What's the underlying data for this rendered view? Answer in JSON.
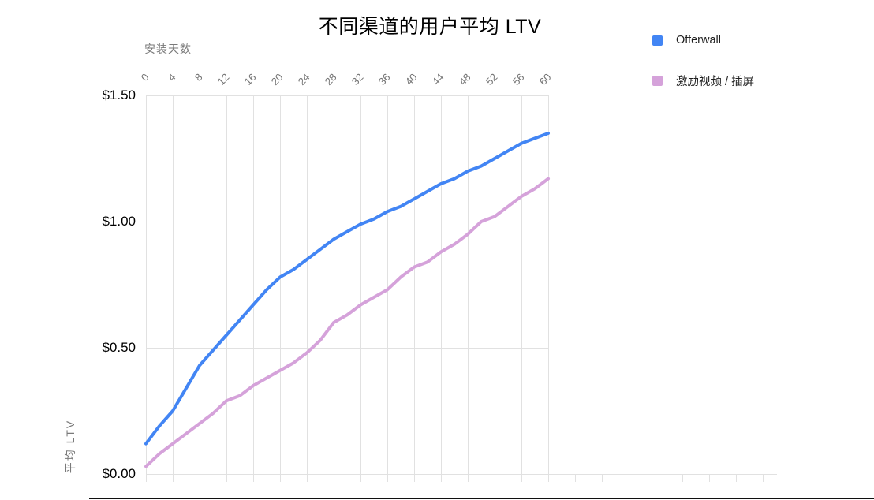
{
  "chart_data": {
    "type": "line",
    "title": "不同渠道的用户平均 LTV",
    "xlabel": "安装天数",
    "ylabel": "平均 LTV",
    "legend_position": "right-outside",
    "grid": true,
    "xlim": [
      0,
      60
    ],
    "ylim": [
      0,
      1.5
    ],
    "x_tick_labels": [
      0,
      4,
      8,
      12,
      16,
      20,
      24,
      28,
      32,
      36,
      40,
      44,
      48,
      52,
      56,
      60
    ],
    "y_ticks": [
      0,
      0.5,
      1.0,
      1.5
    ],
    "y_tick_labels": [
      "$0.00",
      "$0.50",
      "$1.00",
      "$1.50"
    ],
    "x": [
      0,
      2,
      4,
      6,
      8,
      10,
      12,
      14,
      16,
      18,
      20,
      22,
      24,
      26,
      28,
      30,
      32,
      34,
      36,
      38,
      40,
      42,
      44,
      46,
      48,
      50,
      52,
      54,
      56,
      58,
      60
    ],
    "series": [
      {
        "name": "Offerwall",
        "color": "#4285f4",
        "values": [
          0.12,
          0.19,
          0.25,
          0.34,
          0.43,
          0.49,
          0.55,
          0.61,
          0.67,
          0.73,
          0.78,
          0.81,
          0.85,
          0.89,
          0.93,
          0.96,
          0.99,
          1.01,
          1.04,
          1.06,
          1.09,
          1.12,
          1.15,
          1.17,
          1.2,
          1.22,
          1.25,
          1.28,
          1.31,
          1.33,
          1.35
        ]
      },
      {
        "name": "激励视频 / 插屏",
        "color": "#d5a2da",
        "values": [
          0.03,
          0.08,
          0.12,
          0.16,
          0.2,
          0.24,
          0.29,
          0.31,
          0.35,
          0.38,
          0.41,
          0.44,
          0.48,
          0.53,
          0.6,
          0.63,
          0.67,
          0.7,
          0.73,
          0.78,
          0.82,
          0.84,
          0.88,
          0.91,
          0.95,
          1.0,
          1.02,
          1.06,
          1.1,
          1.13,
          1.17
        ]
      }
    ]
  },
  "colors": {
    "grid": "#e1e1e1",
    "x_tick_label": "#757575",
    "axis_title": "#7a7a7a",
    "y_tick_label": "#000000",
    "title": "#000000"
  }
}
